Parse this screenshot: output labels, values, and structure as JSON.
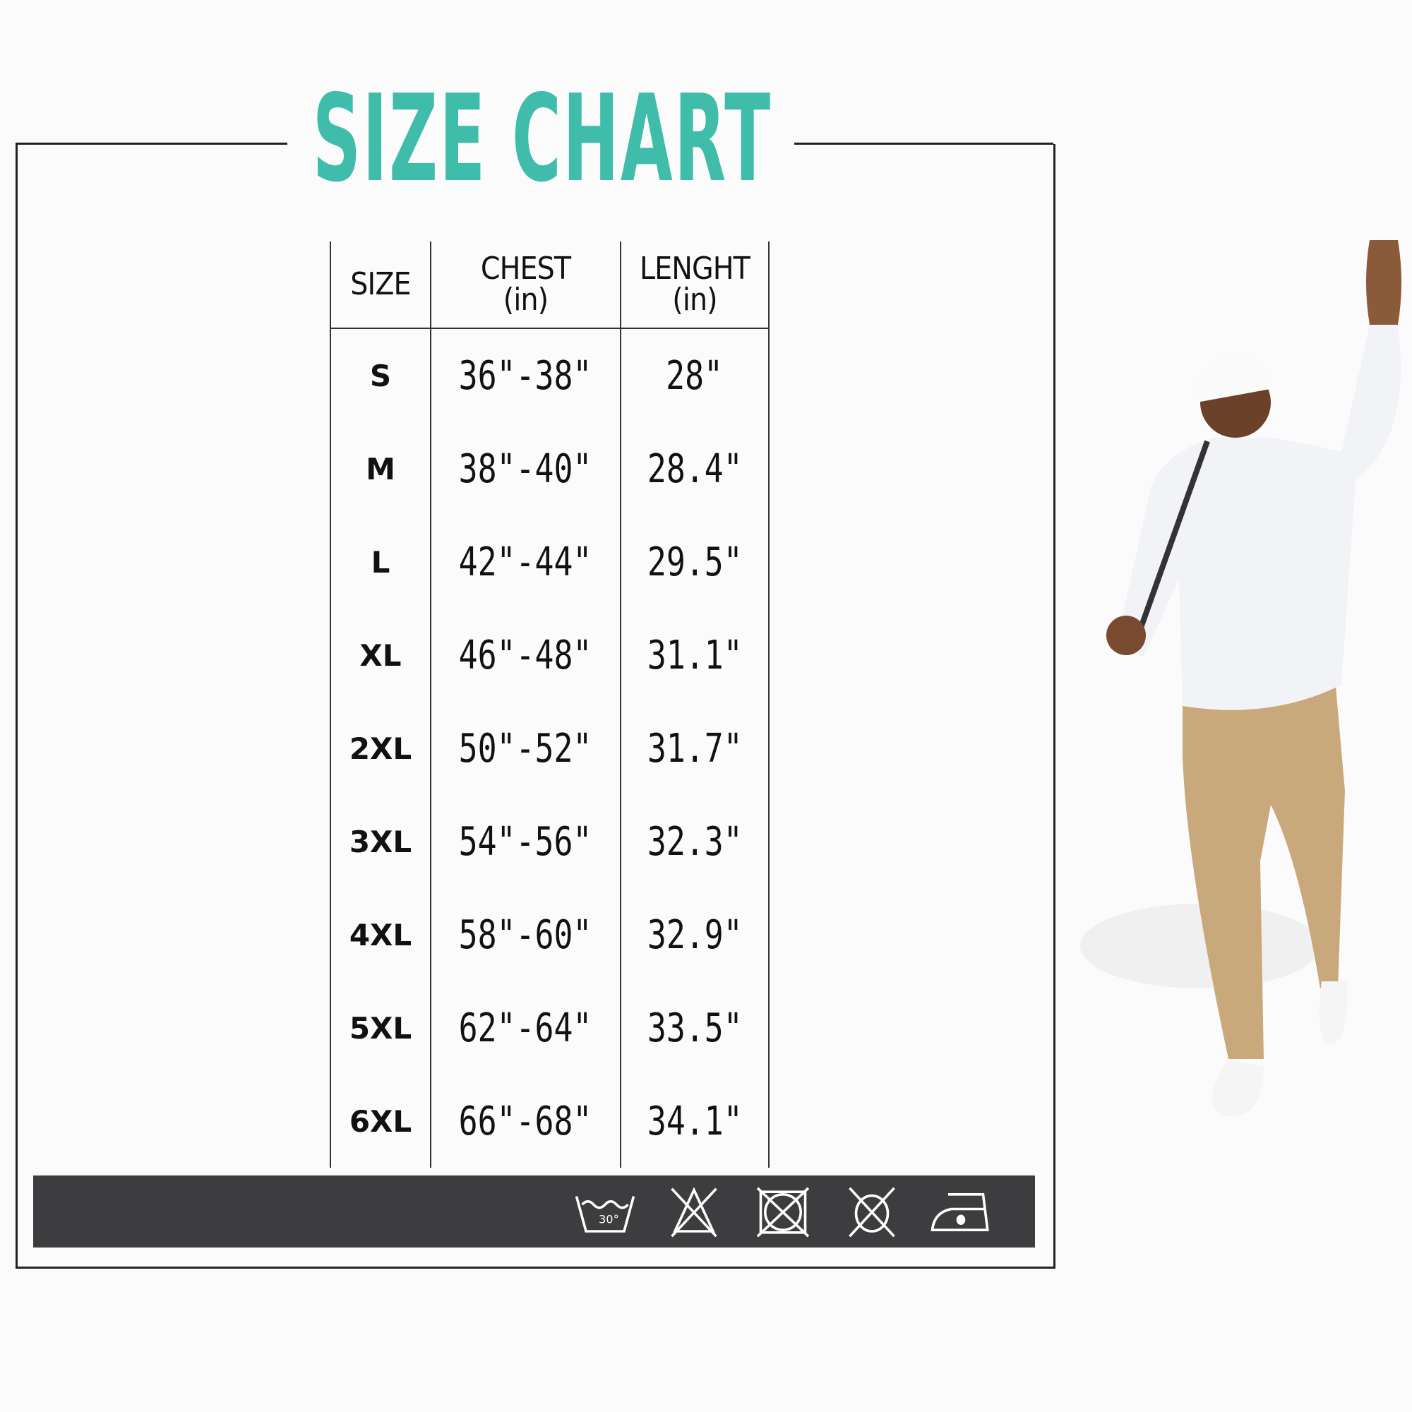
{
  "title": "SIZE CHART",
  "table": {
    "headers": [
      {
        "label": "SIZE",
        "unit": ""
      },
      {
        "label": "CHEST",
        "unit": "(in)"
      },
      {
        "label": "LENGHT",
        "unit": "(in)"
      }
    ],
    "rows": [
      {
        "size": "S",
        "chest": "36\"-38\"",
        "length": "28\""
      },
      {
        "size": "M",
        "chest": "38\"-40\"",
        "length": "28.4\""
      },
      {
        "size": "L",
        "chest": "42\"-44\"",
        "length": "29.5\""
      },
      {
        "size": "XL",
        "chest": "46\"-48\"",
        "length": "31.1\""
      },
      {
        "size": "2XL",
        "chest": "50\"-52\"",
        "length": "31.7\""
      },
      {
        "size": "3XL",
        "chest": "54\"-56\"",
        "length": "32.3\""
      },
      {
        "size": "4XL",
        "chest": "58\"-60\"",
        "length": "32.9\""
      },
      {
        "size": "5XL",
        "chest": "62\"-64\"",
        "length": "33.5\""
      },
      {
        "size": "6XL",
        "chest": "66\"-68\"",
        "length": "34.1\""
      }
    ]
  },
  "care": {
    "wash_temp": "30°",
    "icons": [
      "wash-30-icon",
      "no-bleach-icon",
      "no-tumble-dry-icon",
      "no-dry-clean-icon",
      "iron-low-icon"
    ]
  },
  "colors": {
    "title": "#3fbdaa",
    "bar": "#3d3c3e",
    "shirt": "#f2f3f7",
    "pants": "#c9a97c"
  }
}
